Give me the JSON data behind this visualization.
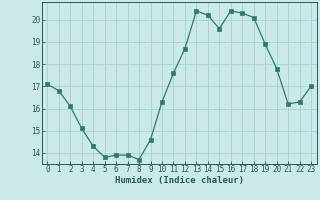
{
  "x": [
    0,
    1,
    2,
    3,
    4,
    5,
    6,
    7,
    8,
    9,
    10,
    11,
    12,
    13,
    14,
    15,
    16,
    17,
    18,
    19,
    20,
    21,
    22,
    23
  ],
  "y": [
    17.1,
    16.8,
    16.1,
    15.1,
    14.3,
    13.8,
    13.9,
    13.9,
    13.7,
    14.6,
    16.3,
    17.6,
    18.7,
    20.4,
    20.2,
    19.6,
    20.4,
    20.3,
    20.1,
    18.9,
    17.8,
    16.2,
    16.3,
    17.0
  ],
  "line_color": "#2e7b6e",
  "marker": "s",
  "marker_size": 2.2,
  "bg_color": "#cce9e9",
  "grid_color": "#a8d0d0",
  "tick_color": "#2a5858",
  "spine_color": "#2a5858",
  "xlabel": "Humidex (Indice chaleur)",
  "ylim": [
    13.5,
    20.8
  ],
  "xlim": [
    -0.5,
    23.5
  ],
  "yticks": [
    14,
    15,
    16,
    17,
    18,
    19,
    20
  ],
  "xticks": [
    0,
    1,
    2,
    3,
    4,
    5,
    6,
    7,
    8,
    9,
    10,
    11,
    12,
    13,
    14,
    15,
    16,
    17,
    18,
    19,
    20,
    21,
    22,
    23
  ],
  "xtick_labels": [
    "0",
    "1",
    "2",
    "3",
    "4",
    "5",
    "6",
    "7",
    "8",
    "9",
    "10",
    "11",
    "12",
    "13",
    "14",
    "15",
    "16",
    "17",
    "18",
    "19",
    "20",
    "21",
    "22",
    "23"
  ],
  "tick_fontsize": 5.5,
  "label_fontsize": 6.5
}
